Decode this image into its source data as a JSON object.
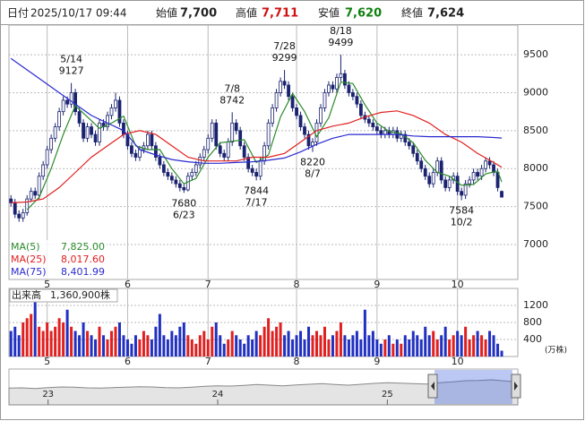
{
  "chart_data": {
    "type": "candlestick",
    "header": {
      "date_label": "日付",
      "date": "2025/10/17 09:44",
      "open_label": "始値",
      "open": "7,700",
      "high_label": "高値",
      "high": "7,711",
      "low_label": "安値",
      "low": "7,620",
      "close_label": "終値",
      "close": "7,624"
    },
    "xlim": [
      -0.5,
      126
    ],
    "xticks": [
      {
        "value": 9,
        "label": "5"
      },
      {
        "value": 29,
        "label": "6"
      },
      {
        "value": 49,
        "label": "7"
      },
      {
        "value": 71,
        "label": "8"
      },
      {
        "value": 91,
        "label": "9"
      },
      {
        "value": 111,
        "label": "10"
      }
    ],
    "ylim": [
      6540,
      9890
    ],
    "yticks": [
      7000,
      7500,
      8000,
      8500,
      9000,
      9500
    ],
    "grid": true,
    "up_color": "#ffffff",
    "down_color": "#1a2370",
    "edge_color": "#1a2370",
    "open": [
      7600,
      7550,
      7400,
      7350,
      7420,
      7600,
      7700,
      7650,
      7900,
      8050,
      8250,
      8400,
      8550,
      8750,
      8900,
      8850,
      9000,
      8750,
      8600,
      8400,
      8550,
      8450,
      8350,
      8600,
      8550,
      8700,
      8800,
      8900,
      8600,
      8450,
      8300,
      8200,
      8150,
      8250,
      8300,
      8450,
      8300,
      8150,
      8050,
      7950,
      7900,
      7850,
      7800,
      7750,
      7720,
      7900,
      7950,
      8050,
      8150,
      8250,
      8400,
      8600,
      8300,
      8200,
      8150,
      8350,
      8600,
      8500,
      8300,
      8150,
      8000,
      7950,
      7900,
      8100,
      8300,
      8600,
      8800,
      9000,
      9150,
      9100,
      8950,
      8800,
      8700,
      8550,
      8450,
      8300,
      8350,
      8600,
      8800,
      9000,
      9100,
      9050,
      9200,
      9250,
      9100,
      9000,
      8950,
      8850,
      8700,
      8650,
      8600,
      8550,
      8500,
      8450,
      8500,
      8450,
      8500,
      8400,
      8450,
      8350,
      8300,
      8200,
      8100,
      8000,
      7900,
      7800,
      7950,
      8100,
      7850,
      7750,
      7850,
      7900,
      7700,
      7650,
      7800,
      7850,
      7950,
      7900,
      8000,
      8100,
      8050,
      7950,
      7700
    ],
    "high": [
      7650,
      7600,
      7450,
      7470,
      7650,
      7750,
      7750,
      7950,
      8100,
      8300,
      8450,
      8600,
      8800,
      8950,
      8950,
      9127,
      9050,
      8800,
      8650,
      8600,
      8600,
      8500,
      8650,
      8650,
      8750,
      8850,
      9000,
      8950,
      8650,
      8500,
      8350,
      8250,
      8300,
      8350,
      8500,
      8500,
      8350,
      8200,
      8100,
      8000,
      7950,
      7900,
      7850,
      7800,
      7950,
      8000,
      8100,
      8200,
      8300,
      8450,
      8650,
      8650,
      8350,
      8250,
      8400,
      8742,
      8650,
      8550,
      8350,
      8200,
      8050,
      8000,
      8150,
      8350,
      8650,
      8850,
      9050,
      9200,
      9299,
      9150,
      9000,
      8850,
      8750,
      8600,
      8500,
      8400,
      8650,
      8850,
      9050,
      9150,
      9150,
      9250,
      9499,
      9300,
      9150,
      9050,
      9000,
      8900,
      8750,
      8700,
      8650,
      8600,
      8550,
      8550,
      8550,
      8550,
      8550,
      8500,
      8500,
      8400,
      8350,
      8250,
      8150,
      8050,
      7950,
      8000,
      8150,
      8150,
      7900,
      7900,
      7950,
      7950,
      7750,
      7850,
      7900,
      8000,
      8000,
      8050,
      8150,
      8150,
      8100,
      8000,
      7711
    ],
    "low": [
      7500,
      7350,
      7300,
      7300,
      7380,
      7560,
      7600,
      7600,
      7850,
      8000,
      8200,
      8350,
      8500,
      8700,
      8800,
      8800,
      8700,
      8550,
      8350,
      8350,
      8400,
      8300,
      8300,
      8500,
      8500,
      8650,
      8750,
      8550,
      8400,
      8250,
      8150,
      8100,
      8100,
      8200,
      8250,
      8250,
      8100,
      8000,
      7900,
      7850,
      7800,
      7750,
      7700,
      7680,
      7700,
      7850,
      7900,
      8000,
      8100,
      8200,
      8350,
      8250,
      8150,
      8100,
      8100,
      8300,
      8450,
      8250,
      8100,
      7950,
      7900,
      7844,
      7850,
      8050,
      8250,
      8550,
      8750,
      8950,
      9050,
      8900,
      8750,
      8650,
      8500,
      8400,
      8250,
      8220,
      8300,
      8550,
      8750,
      8950,
      9000,
      9000,
      9150,
      9050,
      8950,
      8900,
      8800,
      8650,
      8600,
      8550,
      8500,
      8450,
      8400,
      8400,
      8400,
      8400,
      8350,
      8350,
      8300,
      8250,
      8150,
      8050,
      7950,
      7850,
      7750,
      7750,
      7900,
      7800,
      7700,
      7700,
      7800,
      7650,
      7584,
      7600,
      7750,
      7800,
      7850,
      7850,
      7950,
      8000,
      7900,
      7700,
      7620
    ],
    "close": [
      7550,
      7400,
      7350,
      7420,
      7600,
      7700,
      7650,
      7900,
      8050,
      8250,
      8400,
      8550,
      8750,
      8900,
      8850,
      9000,
      8750,
      8600,
      8400,
      8550,
      8450,
      8350,
      8600,
      8550,
      8700,
      8800,
      8900,
      8600,
      8450,
      8300,
      8200,
      8150,
      8250,
      8300,
      8450,
      8300,
      8150,
      8050,
      7950,
      7900,
      7850,
      7800,
      7750,
      7720,
      7900,
      7950,
      8050,
      8150,
      8250,
      8400,
      8600,
      8300,
      8200,
      8150,
      8350,
      8600,
      8500,
      8300,
      8150,
      8000,
      7950,
      7900,
      8100,
      8300,
      8600,
      8800,
      9000,
      9150,
      9100,
      8950,
      8800,
      8700,
      8550,
      8450,
      8300,
      8350,
      8600,
      8800,
      9000,
      9100,
      9050,
      9200,
      9250,
      9100,
      9000,
      8950,
      8850,
      8700,
      8650,
      8600,
      8550,
      8500,
      8450,
      8500,
      8450,
      8500,
      8400,
      8450,
      8350,
      8300,
      8200,
      8100,
      8000,
      7900,
      7800,
      7950,
      8100,
      7850,
      7750,
      7850,
      7900,
      7700,
      7650,
      7800,
      7850,
      7950,
      7900,
      8000,
      8100,
      8050,
      7950,
      7750,
      7624
    ],
    "series": [
      {
        "name": "MA(5)",
        "color": "#2a8a2a",
        "value_label": "7,825.00",
        "x": [
          4,
          7,
          10,
          13,
          16,
          19,
          22,
          25,
          28,
          31,
          34,
          37,
          40,
          43,
          46,
          49,
          52,
          55,
          58,
          61,
          64,
          67,
          70,
          73,
          76,
          79,
          82,
          85,
          88,
          91,
          94,
          97,
          100,
          103,
          106,
          109,
          112,
          115,
          118,
          121,
          122
        ],
        "values": [
          7460,
          7620,
          8000,
          8450,
          8830,
          8680,
          8530,
          8600,
          8690,
          8300,
          8250,
          8250,
          8000,
          7800,
          7870,
          8150,
          8340,
          8360,
          8380,
          8080,
          8180,
          8680,
          8990,
          8750,
          8420,
          8670,
          9140,
          9120,
          8840,
          8600,
          8490,
          8460,
          8340,
          8110,
          7950,
          7900,
          7780,
          7790,
          7930,
          7970,
          7825
        ]
      },
      {
        "name": "MA(25)",
        "color": "#e02020",
        "value_label": "8,017.60",
        "x": [
          0,
          4,
          8,
          12,
          16,
          20,
          24,
          28,
          32,
          36,
          40,
          44,
          48,
          52,
          56,
          60,
          64,
          68,
          72,
          76,
          80,
          84,
          88,
          92,
          96,
          100,
          104,
          108,
          112,
          116,
          120,
          122
        ],
        "values": [
          7550,
          7560,
          7600,
          7750,
          7950,
          8150,
          8300,
          8450,
          8500,
          8450,
          8300,
          8150,
          8100,
          8100,
          8100,
          8150,
          8150,
          8200,
          8350,
          8500,
          8560,
          8600,
          8680,
          8740,
          8760,
          8700,
          8600,
          8450,
          8350,
          8200,
          8080,
          8017.6
        ]
      },
      {
        "name": "MA(75)",
        "color": "#2a2ad0",
        "value_label": "8,401.99",
        "x": [
          0,
          4,
          8,
          12,
          16,
          20,
          24,
          28,
          32,
          36,
          40,
          44,
          48,
          52,
          56,
          60,
          64,
          68,
          72,
          76,
          80,
          84,
          88,
          92,
          96,
          100,
          104,
          108,
          112,
          116,
          120,
          122
        ],
        "values": [
          9450,
          9300,
          9150,
          9000,
          8850,
          8700,
          8600,
          8500,
          8250,
          8180,
          8120,
          8090,
          8070,
          8070,
          8080,
          8090,
          8110,
          8140,
          8220,
          8320,
          8400,
          8450,
          8450,
          8450,
          8450,
          8430,
          8420,
          8420,
          8420,
          8420,
          8410,
          8401.99
        ]
      }
    ],
    "annotations": [
      {
        "label": "5/14",
        "value": 9127,
        "kind": "high"
      },
      {
        "label": "6/23",
        "value": 7680,
        "kind": "low"
      },
      {
        "label": "7/8",
        "value": 8742,
        "kind": "high"
      },
      {
        "label": "7/17",
        "value": 7844,
        "kind": "low"
      },
      {
        "label": "7/28",
        "value": 9299,
        "kind": "high"
      },
      {
        "label": "8/7",
        "value": 8220,
        "kind": "low"
      },
      {
        "label": "8/18",
        "value": 9499,
        "kind": "high"
      },
      {
        "label": "10/2",
        "value": 7584,
        "kind": "low"
      }
    ],
    "volume": {
      "title": "出来高",
      "current": "1,360,900株",
      "unit": "(万株)",
      "ylim": [
        0,
        1600
      ],
      "yticks": [
        400,
        800,
        1200
      ],
      "up_color": "#e02020",
      "down_color": "#2030c0",
      "values": [
        600,
        700,
        500,
        800,
        900,
        1000,
        1300,
        700,
        600,
        800,
        600,
        700,
        900,
        800,
        1100,
        700,
        600,
        500,
        800,
        600,
        500,
        400,
        700,
        500,
        400,
        600,
        700,
        800,
        500,
        400,
        300,
        500,
        400,
        600,
        500,
        400,
        700,
        1000,
        500,
        400,
        600,
        500,
        700,
        800,
        500,
        400,
        300,
        500,
        600,
        400,
        700,
        800,
        500,
        300,
        400,
        600,
        500,
        400,
        300,
        500,
        400,
        600,
        500,
        700,
        900,
        600,
        700,
        800,
        500,
        600,
        400,
        500,
        600,
        400,
        700,
        500,
        600,
        500,
        700,
        400,
        500,
        600,
        800,
        500,
        400,
        500,
        600,
        400,
        1100,
        500,
        600,
        400,
        300,
        400,
        500,
        300,
        400,
        300,
        500,
        400,
        600,
        500,
        400,
        700,
        500,
        600,
        400,
        500,
        700,
        400,
        500,
        600,
        500,
        700,
        400,
        500,
        600,
        500,
        400,
        600,
        500,
        300,
        136.09
      ]
    },
    "navigator": {
      "xlim": [
        0,
        39
      ],
      "ylim": [
        0,
        12000
      ],
      "xticks": [
        {
          "value": 3,
          "label": "23"
        },
        {
          "value": 16,
          "label": "24"
        },
        {
          "value": 29,
          "label": "25"
        }
      ],
      "values": [
        5600,
        5700,
        5500,
        5800,
        6000,
        5900,
        5700,
        5600,
        5800,
        5900,
        6100,
        6000,
        5800,
        5700,
        5900,
        6200,
        6400,
        6300,
        6500,
        6800,
        6600,
        6400,
        6700,
        6900,
        7100,
        6800,
        6600,
        6900,
        7200,
        7400,
        7300,
        7100,
        7000,
        7400,
        7700,
        8100,
        8200,
        8400,
        8000,
        7700
      ]
    }
  }
}
